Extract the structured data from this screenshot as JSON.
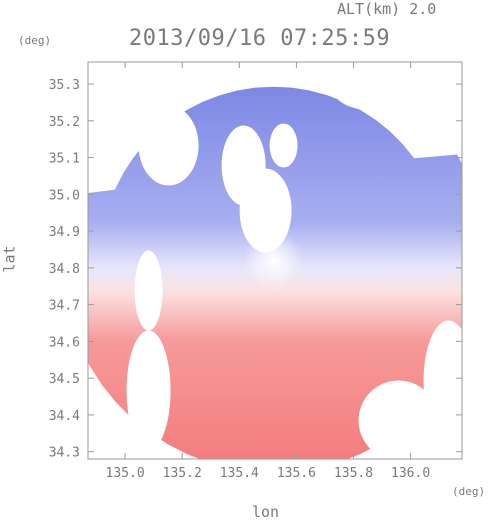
{
  "header": {
    "alt_label": "ALT(km) 2.0",
    "datetime": "2013/09/16 07:25:59"
  },
  "axes": {
    "x_unit": "(deg)",
    "y_unit": "(deg)"
  },
  "chart_data": {
    "type": "heatmap",
    "title": "2013/09/16 07:25:59",
    "subtitle": "ALT(km) 2.0",
    "xlabel": "lon",
    "ylabel": "lat",
    "xlim": [
      134.87,
      136.18
    ],
    "ylim": [
      34.28,
      35.36
    ],
    "x_ticks": [
      "135.0",
      "135.2",
      "135.4",
      "135.6",
      "135.8",
      "136.0"
    ],
    "y_ticks": [
      "34.3",
      "34.4",
      "34.5",
      "34.6",
      "34.7",
      "34.8",
      "34.9",
      "35.0",
      "35.1",
      "35.2",
      "35.3"
    ],
    "radar_center": {
      "lon": 135.52,
      "lat": 34.82
    },
    "colors": {
      "negative": "#6b78e0",
      "positive": "#f26a6a",
      "neutral": "#ffffff"
    },
    "grid": false
  }
}
